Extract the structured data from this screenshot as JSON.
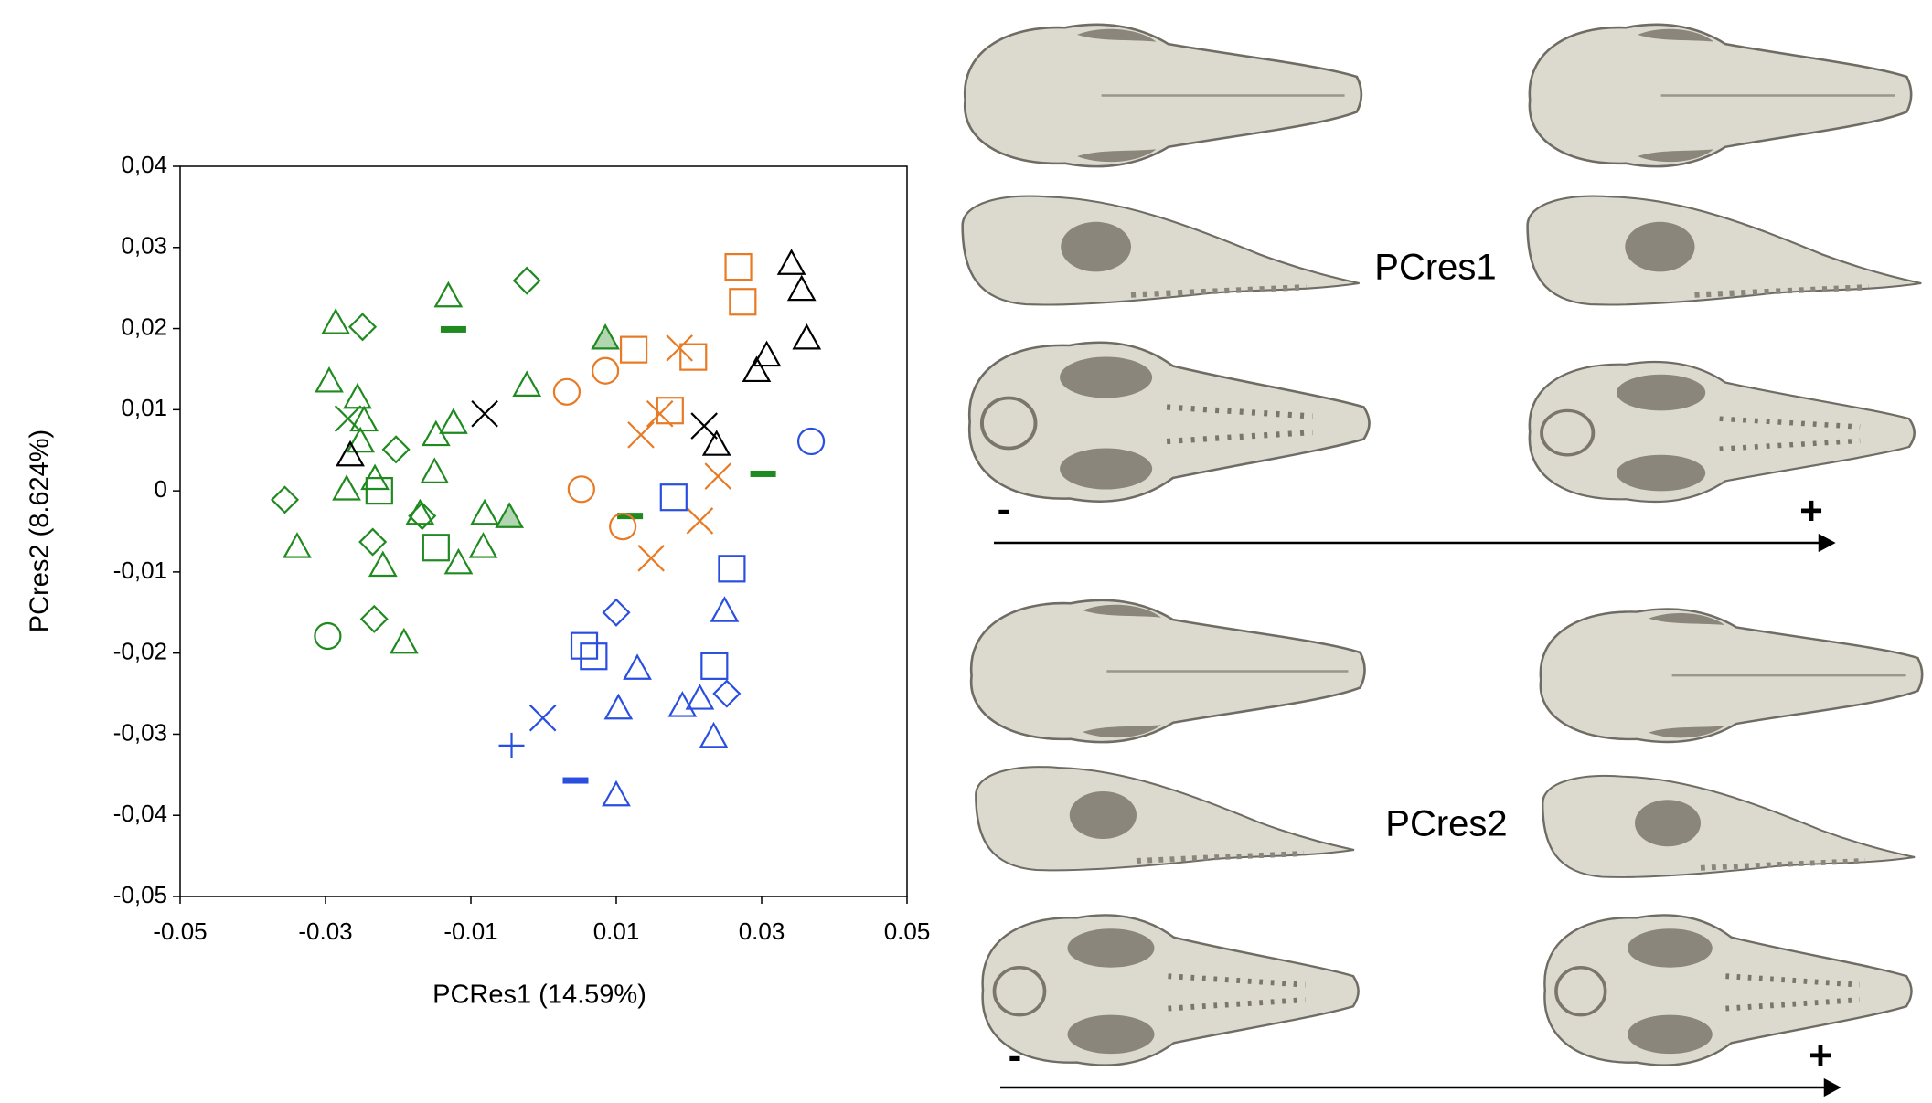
{
  "chart_data": {
    "type": "scatter",
    "xlabel": "PCRes1 (14.59%)",
    "ylabel": "PCres2 (8.624%)",
    "xlim": [
      -0.05,
      0.05
    ],
    "ylim": [
      -0.05,
      0.04
    ],
    "xticks": [
      -0.05,
      -0.03,
      -0.01,
      0.01,
      0.03,
      0.05
    ],
    "yticks": [
      {
        "value": 0.04,
        "label": "0,04"
      },
      {
        "value": 0.03,
        "label": "0,03"
      },
      {
        "value": 0.02,
        "label": "0,02"
      },
      {
        "value": 0.01,
        "label": "0,01"
      },
      0,
      {
        "value": -0.01,
        "label": "-0,01"
      },
      {
        "value": -0.02,
        "label": "-0,02"
      },
      {
        "value": -0.03,
        "label": "-0,03"
      },
      {
        "value": -0.04,
        "label": "-0,04"
      },
      {
        "value": -0.05,
        "label": "-0,05"
      }
    ],
    "grid": false,
    "series": [
      {
        "color": "#1f8a1f",
        "marker": "triangle",
        "filled": false,
        "x": [
          -0.0286,
          -0.0131,
          -0.0295,
          -0.0256,
          -0.0247,
          -0.0148,
          -0.0124,
          -0.0023,
          -0.0271,
          -0.0232,
          -0.0339,
          -0.0221,
          -0.0192,
          -0.017,
          -0.015,
          -0.0081,
          -0.0117,
          -0.0083,
          -0.0252
        ],
        "values": [
          0.0207,
          0.024,
          0.0135,
          0.0115,
          0.0087,
          0.0069,
          0.0084,
          0.013,
          0.0002,
          0.0015,
          -0.0069,
          -0.0092,
          -0.0187,
          -0.0028,
          0.0023,
          -0.0028,
          -0.0089,
          -0.0069,
          0.0061
        ]
      },
      {
        "color": "#1f8a1f",
        "marker": "triangle",
        "filled": true,
        "x": [
          0.0085,
          -0.0047
        ],
        "values": [
          0.0188,
          -0.0032
        ]
      },
      {
        "color": "#1f8a1f",
        "marker": "diamond",
        "filled": false,
        "x": [
          -0.0023,
          -0.0249,
          -0.0356,
          -0.0203,
          -0.0235,
          -0.0233,
          -0.0167
        ],
        "values": [
          0.0259,
          0.0202,
          -0.0011,
          0.0051,
          -0.0063,
          -0.0158,
          -0.0031
        ]
      },
      {
        "color": "#1f8a1f",
        "marker": "circle",
        "filled": false,
        "x": [
          -0.0297
        ],
        "values": [
          -0.0179
        ]
      },
      {
        "color": "#1f8a1f",
        "marker": "x",
        "filled": false,
        "x": [
          -0.0269
        ],
        "values": [
          0.0089
        ]
      },
      {
        "color": "#1f8a1f",
        "marker": "dash",
        "filled": true,
        "x": [
          -0.0124,
          0.0119,
          0.0302
        ],
        "values": [
          0.0199,
          -0.0031,
          0.0021
        ]
      },
      {
        "color": "#1f8a1f",
        "marker": "square",
        "filled": false,
        "x": [
          -0.0226,
          -0.0148
        ],
        "values": [
          0.0,
          -0.007
        ]
      },
      {
        "color": "#000000",
        "marker": "triangle",
        "filled": false,
        "x": [
          0.0341,
          0.0355,
          0.0362,
          0.0307,
          0.0293,
          0.0238,
          -0.0266
        ],
        "values": [
          0.028,
          0.0248,
          0.0188,
          0.0167,
          0.0148,
          0.0057,
          0.0044
        ]
      },
      {
        "color": "#000000",
        "marker": "x",
        "filled": false,
        "x": [
          -0.0081,
          0.0221
        ],
        "values": [
          0.0095,
          0.008
        ]
      },
      {
        "color": "#e87a24",
        "marker": "square",
        "filled": false,
        "x": [
          0.0268,
          0.0274,
          0.0124,
          0.0206,
          0.0174
        ],
        "values": [
          0.0276,
          0.0233,
          0.0174,
          0.0165,
          0.0099
        ]
      },
      {
        "color": "#e87a24",
        "marker": "circle",
        "filled": false,
        "x": [
          0.0032,
          0.0085,
          0.0052,
          0.0109
        ],
        "values": [
          0.0122,
          0.0148,
          0.0002,
          -0.0044
        ]
      },
      {
        "color": "#e87a24",
        "marker": "x",
        "filled": false,
        "x": [
          0.0187,
          0.0134,
          0.016,
          0.024,
          0.0215,
          0.0148
        ],
        "values": [
          0.0176,
          0.0069,
          0.0095,
          0.0018,
          -0.0037,
          -0.0083
        ]
      },
      {
        "color": "#2a4fe0",
        "marker": "circle",
        "filled": false,
        "x": [
          0.0368
        ],
        "values": [
          0.0061
        ]
      },
      {
        "color": "#2a4fe0",
        "marker": "square",
        "filled": false,
        "x": [
          0.0179,
          0.0259,
          0.0056,
          0.0069,
          0.0235
        ],
        "values": [
          -0.0008,
          -0.0096,
          -0.0191,
          -0.0204,
          -0.0216
        ]
      },
      {
        "color": "#2a4fe0",
        "marker": "triangle",
        "filled": false,
        "x": [
          0.0129,
          0.0103,
          0.0191,
          0.0215,
          0.0234,
          0.0249,
          0.01
        ],
        "values": [
          -0.0219,
          -0.0268,
          -0.0265,
          -0.0256,
          -0.0303,
          -0.0148,
          -0.0375
        ]
      },
      {
        "color": "#2a4fe0",
        "marker": "diamond",
        "filled": false,
        "x": [
          0.01,
          0.0252
        ],
        "values": [
          -0.015,
          -0.025
        ]
      },
      {
        "color": "#2a4fe0",
        "marker": "x",
        "filled": false,
        "x": [
          -0.0001
        ],
        "values": [
          -0.028
        ]
      },
      {
        "color": "#2a4fe0",
        "marker": "plus",
        "filled": false,
        "x": [
          -0.0044
        ],
        "values": [
          -0.0314
        ]
      },
      {
        "color": "#2a4fe0",
        "marker": "dash",
        "filled": true,
        "x": [
          0.0044
        ],
        "values": [
          -0.0357
        ]
      }
    ]
  },
  "panels": [
    {
      "label": "PCres1",
      "minus": "-",
      "plus": "+"
    },
    {
      "label": "PCres2",
      "minus": "-",
      "plus": "+"
    }
  ]
}
